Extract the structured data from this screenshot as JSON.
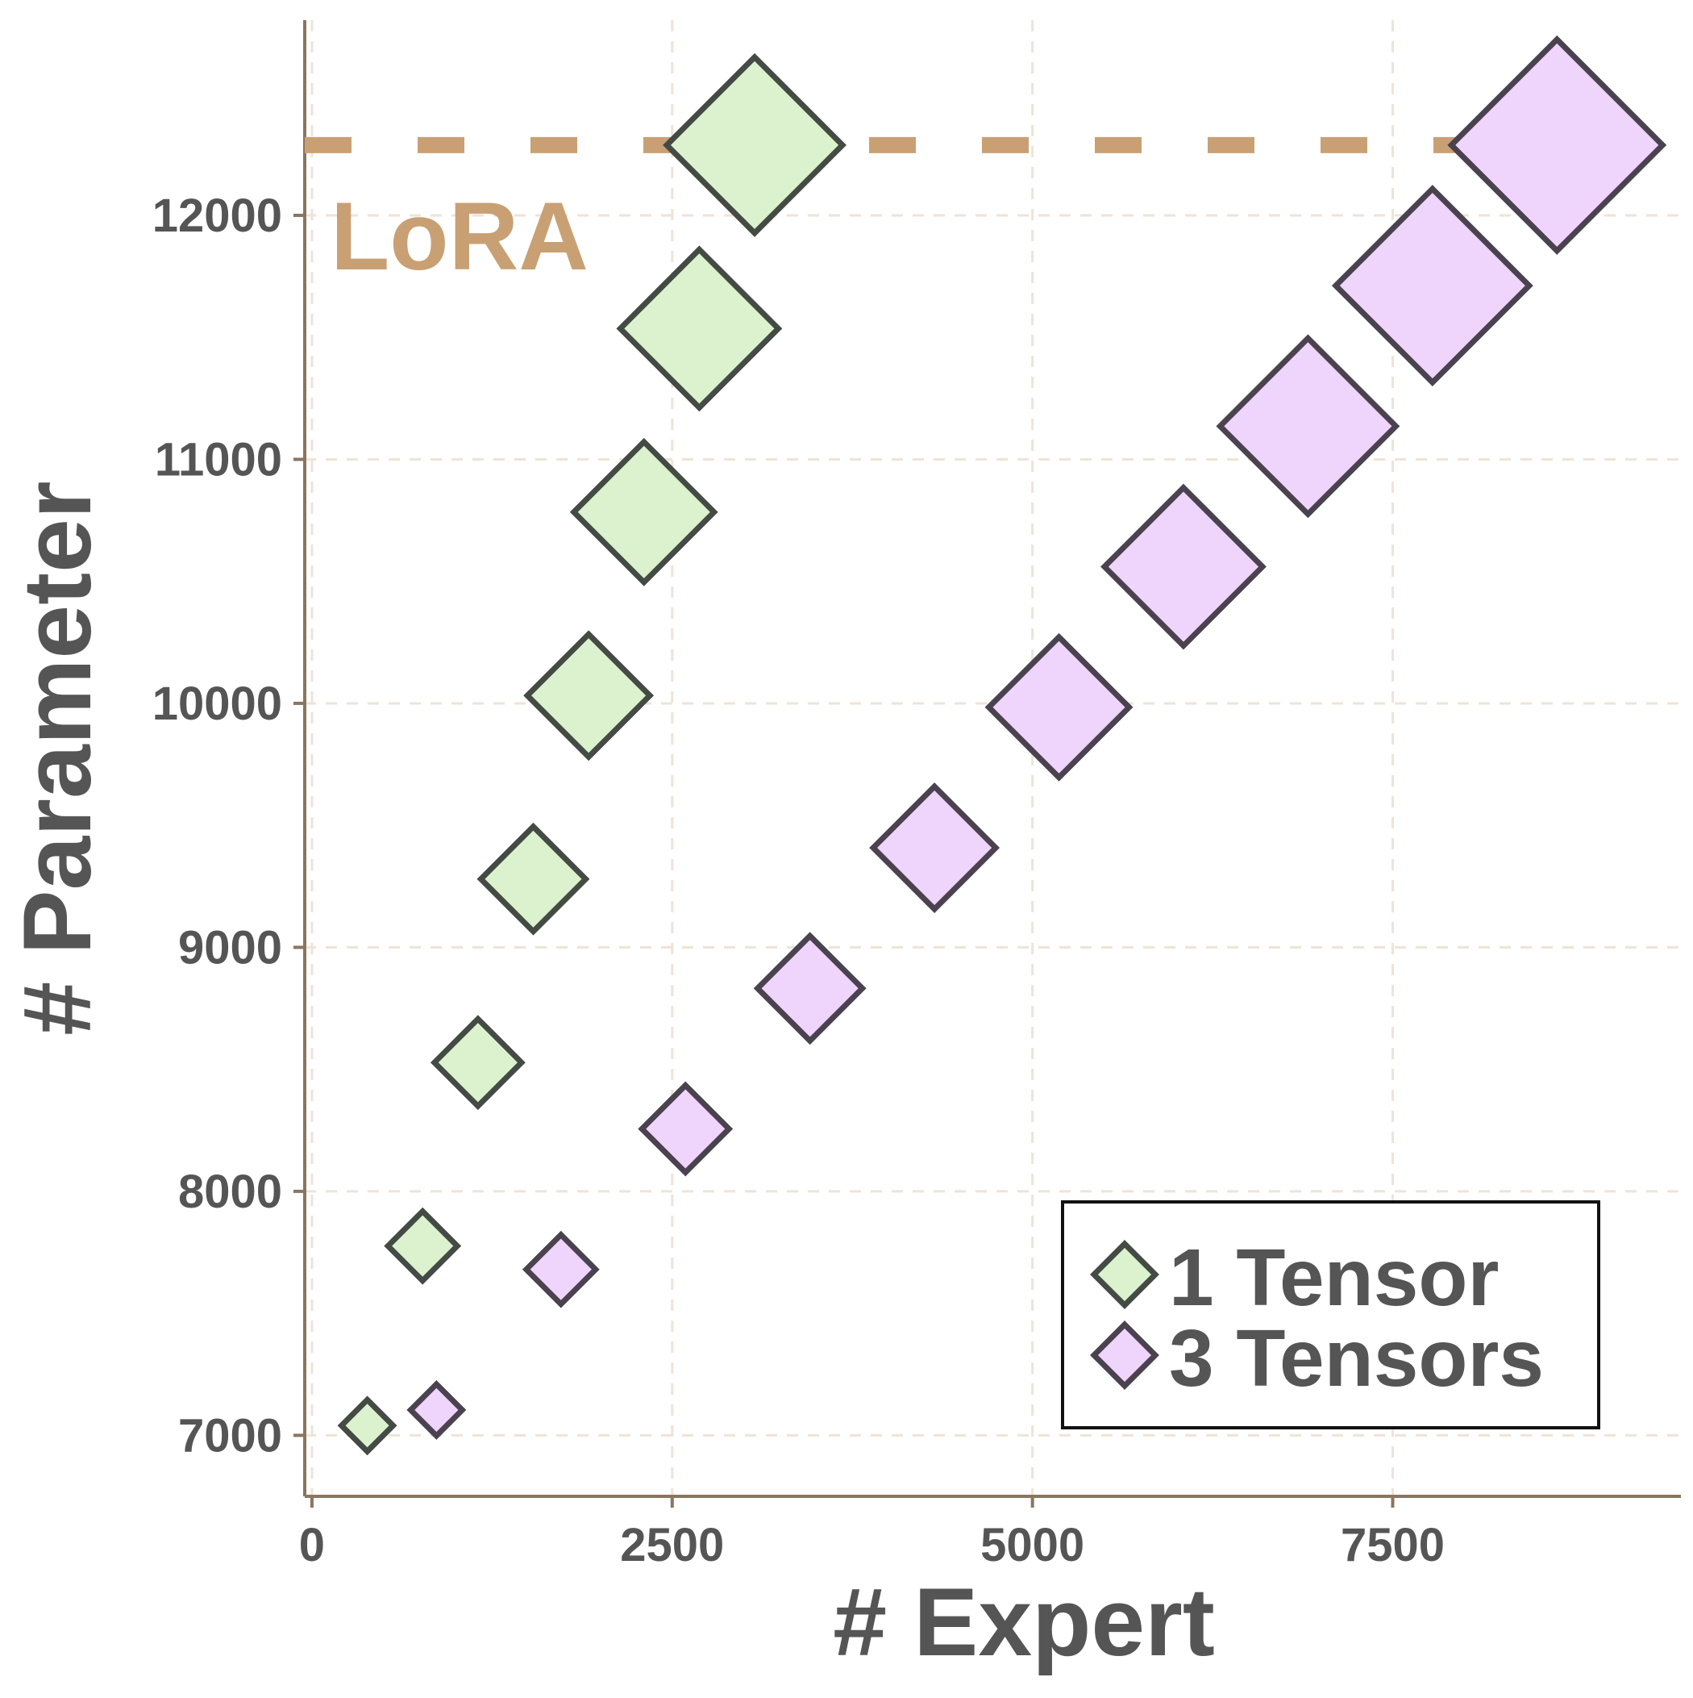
{
  "chart_data": {
    "type": "scatter",
    "title": "",
    "xlabel": "# Expert",
    "ylabel": "# Parameter",
    "xlim": [
      -50,
      9500
    ],
    "ylim": [
      6750,
      12800
    ],
    "xticks": [
      0,
      2500,
      5000,
      7500
    ],
    "xtick_labels": [
      "0",
      "2500",
      "5000",
      "7500"
    ],
    "yticks": [
      7000,
      8000,
      9000,
      10000,
      11000,
      12000
    ],
    "ytick_labels": [
      "7000",
      "8000",
      "9000",
      "10000",
      "11000",
      "12000"
    ],
    "grid": true,
    "legend_position": "bottom-right",
    "reference_line": {
      "label": "LoRA",
      "y": 12288,
      "color": "#c9a074"
    },
    "series": [
      {
        "name": "1 Tensor",
        "marker": "diamond",
        "fill": "#dcf2cf",
        "stroke": "#444b44",
        "points": [
          {
            "x": 384,
            "y": 7040,
            "size": 1
          },
          {
            "x": 768,
            "y": 7776,
            "size": 2
          },
          {
            "x": 1152,
            "y": 8528,
            "size": 3
          },
          {
            "x": 1536,
            "y": 9280,
            "size": 4
          },
          {
            "x": 1920,
            "y": 10032,
            "size": 5
          },
          {
            "x": 2304,
            "y": 10784,
            "size": 6
          },
          {
            "x": 2688,
            "y": 11536,
            "size": 7
          },
          {
            "x": 3072,
            "y": 12288,
            "size": 8
          }
        ]
      },
      {
        "name": "3 Tensors",
        "marker": "diamond",
        "fill": "#efd4fb",
        "stroke": "#4a434f",
        "points": [
          {
            "x": 864,
            "y": 7104,
            "size": 1
          },
          {
            "x": 1728,
            "y": 7680,
            "size": 2
          },
          {
            "x": 2592,
            "y": 8256,
            "size": 3
          },
          {
            "x": 3456,
            "y": 8832,
            "size": 4
          },
          {
            "x": 4320,
            "y": 9408,
            "size": 5
          },
          {
            "x": 5184,
            "y": 9984,
            "size": 6
          },
          {
            "x": 6048,
            "y": 10560,
            "size": 7
          },
          {
            "x": 6912,
            "y": 11136,
            "size": 8
          },
          {
            "x": 7776,
            "y": 11712,
            "size": 9
          },
          {
            "x": 8640,
            "y": 12288,
            "size": 10
          }
        ]
      }
    ]
  }
}
